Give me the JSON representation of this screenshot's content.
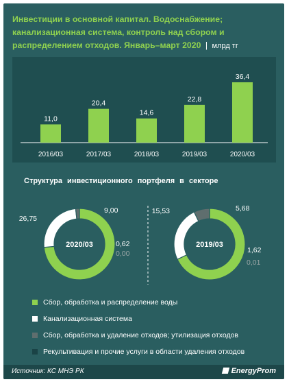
{
  "title": {
    "text": "Инвестиции в основной капитал. Водоснабжение; канализационная система, контроль над сбором и распределением отходов. Январь–март 2020",
    "separator": "|",
    "unit": "млрд тг"
  },
  "chart_data": [
    {
      "type": "bar",
      "categories": [
        "2016/03",
        "2017/03",
        "2018/03",
        "2019/03",
        "2020/03"
      ],
      "values": [
        11.0,
        20.4,
        14.6,
        22.8,
        36.4
      ],
      "value_labels": [
        "11,0",
        "20,4",
        "14,6",
        "22,8",
        "36,4"
      ],
      "color": "#8fd14f"
    },
    {
      "type": "pie",
      "title": "Структура  инвестиционного  портфеля в секторе",
      "center_label": "2020/03",
      "categories": [
        "Сбор, обработка и распределение воды",
        "Канализационная система",
        "Сбор, обработка и удаление отходов; утилизация отходов",
        "Рекультивация и прочие услуги в области удаления отходов"
      ],
      "values": [
        26.75,
        9.0,
        0.62,
        0.0
      ],
      "value_labels": [
        "26,75",
        "9,00",
        "0,62",
        "0,00"
      ]
    },
    {
      "type": "pie",
      "center_label": "2019/03",
      "categories": [
        "Сбор, обработка и распределение воды",
        "Канализационная система",
        "Сбор, обработка и удаление отходов; утилизация отходов",
        "Рекультивация и прочие услуги в области удаления отходов"
      ],
      "values": [
        15.53,
        5.68,
        1.62,
        0.01
      ],
      "value_labels": [
        "15,53",
        "5,68",
        "1,62",
        "0,01"
      ]
    }
  ],
  "legend": [
    {
      "label": "Сбор, обработка и распределение воды",
      "color": "#8fd14f"
    },
    {
      "label": "Канализационная система",
      "color": "#ffffff"
    },
    {
      "label": "Сбор, обработка и удаление отходов; утилизация отходов",
      "color": "#5f6e6e"
    },
    {
      "label": "Рекультивация и прочие услуги в области удаления отходов",
      "color": "#1a4346"
    }
  ],
  "footer": {
    "source": "Источник: КС МНЭ РК",
    "brand": "EnergyProm"
  }
}
